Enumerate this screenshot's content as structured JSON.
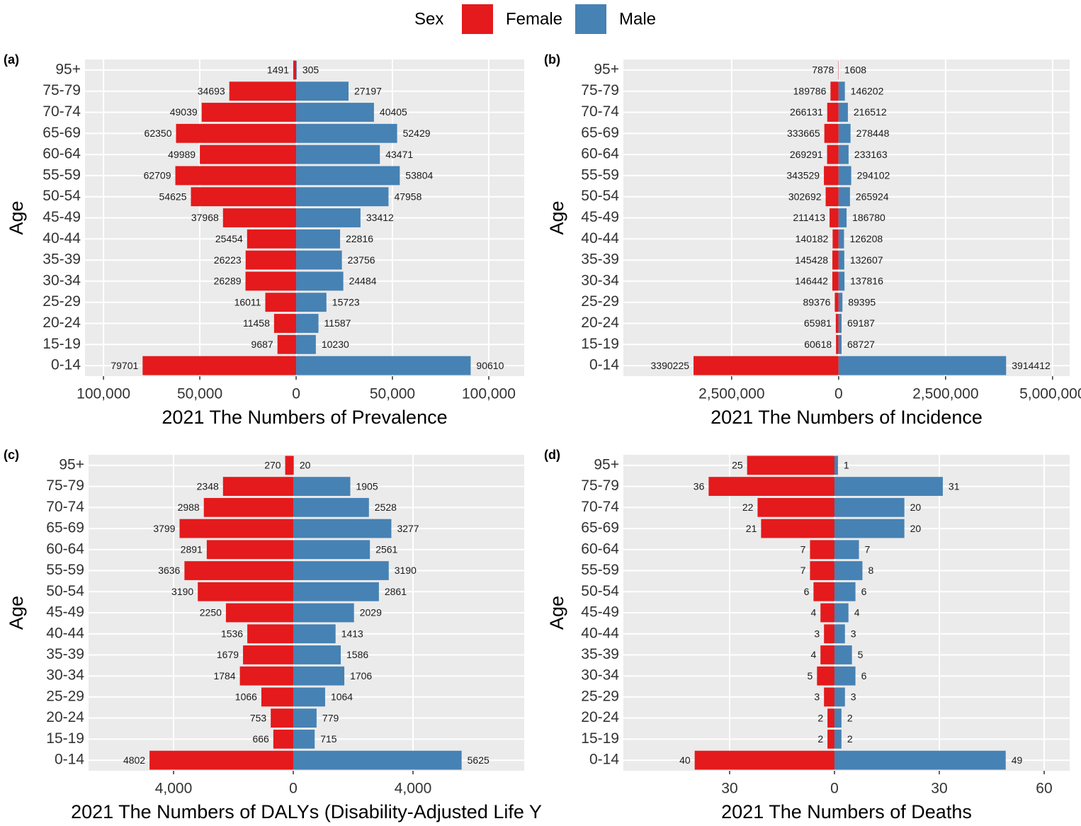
{
  "legend": {
    "title": "Sex"
  },
  "chart_data": [
    {
      "type": "pyramid",
      "tag": "(a)",
      "xlabel": "2021 The Numbers of Prevalence",
      "ylabel": "Age",
      "categories": [
        "95+",
        "75-79",
        "70-74",
        "65-69",
        "60-64",
        "55-59",
        "50-54",
        "45-49",
        "40-44",
        "35-39",
        "30-34",
        "25-29",
        "20-24",
        "15-19",
        "0-14"
      ],
      "series": [
        {
          "name": "Female",
          "color": "#e41a1c",
          "values": [
            -1491,
            -34693,
            -49039,
            -62350,
            -49989,
            -62709,
            -54625,
            -37968,
            -25454,
            -26223,
            -26289,
            -16011,
            -11458,
            -9687,
            -79701
          ],
          "value_labels": [
            "1491",
            "34693",
            "49039",
            "62350",
            "49989",
            "62709",
            "54625",
            "37968",
            "25454",
            "26223",
            "26289",
            "16011",
            "11458",
            "9687",
            "79701"
          ]
        },
        {
          "name": "Male",
          "color": "#4682b4",
          "values": [
            305,
            27197,
            40405,
            52429,
            43471,
            53804,
            47958,
            33412,
            22816,
            23756,
            24484,
            15723,
            11587,
            10230,
            90610
          ]
        }
      ],
      "xlim": [
        -109600,
        118400
      ],
      "xticks": [
        {
          "value": -100000,
          "label": "100,000"
        },
        {
          "value": -50000,
          "label": "50,000"
        },
        0,
        {
          "value": 50000,
          "label": "50,000"
        },
        {
          "value": 100000,
          "label": "100,000"
        }
      ],
      "grid": true
    },
    {
      "type": "pyramid",
      "tag": "(b)",
      "xlabel": "2021 The Numbers of Incidence",
      "ylabel": "Age",
      "categories": [
        "95+",
        "75-79",
        "70-74",
        "65-69",
        "60-64",
        "55-59",
        "50-54",
        "45-49",
        "40-44",
        "35-39",
        "30-34",
        "25-29",
        "20-24",
        "15-19",
        "0-14"
      ],
      "series": [
        {
          "name": "Female",
          "color": "#e41a1c",
          "values": [
            -7878,
            -189786,
            -266131,
            -333665,
            -269291,
            -343529,
            -302692,
            -211413,
            -140182,
            -145428,
            -146442,
            -89376,
            -65981,
            -60618,
            -3390225
          ],
          "value_labels": [
            "7878",
            "189786",
            "266131",
            "333665",
            "269291",
            "343529",
            "302692",
            "211413",
            "140182",
            "145428",
            "146442",
            "89376",
            "65981",
            "60618",
            "3390225"
          ]
        },
        {
          "name": "Male",
          "color": "#4682b4",
          "values": [
            1608,
            146202,
            216512,
            278448,
            233163,
            294102,
            265924,
            186780,
            126208,
            132607,
            137816,
            89395,
            69187,
            68727,
            3914412
          ]
        }
      ],
      "xlim": [
        -5030000,
        5400000
      ],
      "xticks": [
        {
          "value": -2500000,
          "label": "2,500,000"
        },
        0,
        {
          "value": 2500000,
          "label": "2,500,000"
        },
        {
          "value": 5000000,
          "label": "5,000,000"
        }
      ],
      "grid": true
    },
    {
      "type": "pyramid",
      "tag": "(c)",
      "xlabel": "2021 The Numbers of DALYs (Disability-Adjusted Life Y",
      "ylabel": "Age",
      "categories": [
        "95+",
        "75-79",
        "70-74",
        "65-69",
        "60-64",
        "55-59",
        "50-54",
        "45-49",
        "40-44",
        "35-39",
        "30-34",
        "25-29",
        "20-24",
        "15-19",
        "0-14"
      ],
      "series": [
        {
          "name": "Female",
          "color": "#e41a1c",
          "values": [
            -270,
            -2348,
            -2988,
            -3799,
            -2891,
            -3636,
            -3190,
            -2250,
            -1536,
            -1679,
            -1784,
            -1066,
            -753,
            -666,
            -4802
          ],
          "value_labels": [
            "270",
            "2348",
            "2988",
            "3799",
            "2891",
            "3636",
            "3190",
            "2250",
            "1536",
            "1679",
            "1784",
            "1066",
            "753",
            "666",
            "4802"
          ]
        },
        {
          "name": "Male",
          "color": "#4682b4",
          "values": [
            20,
            1905,
            2528,
            3277,
            2561,
            3190,
            2861,
            2029,
            1413,
            1586,
            1706,
            1064,
            779,
            715,
            5625
          ]
        }
      ],
      "xlim": [
        -6840,
        7716
      ],
      "xticks": [
        {
          "value": -4000,
          "label": "4,000"
        },
        0,
        {
          "value": 4000,
          "label": "4,000"
        }
      ],
      "grid": true
    },
    {
      "type": "pyramid",
      "tag": "(d)",
      "xlabel": "2021 The Numbers of Deaths",
      "ylabel": "Age",
      "categories": [
        "95+",
        "75-79",
        "70-74",
        "65-69",
        "60-64",
        "55-59",
        "50-54",
        "45-49",
        "40-44",
        "35-39",
        "30-34",
        "25-29",
        "20-24",
        "15-19",
        "0-14"
      ],
      "series": [
        {
          "name": "Female",
          "color": "#e41a1c",
          "values": [
            -25,
            -36,
            -22,
            -21,
            -7,
            -7,
            -6,
            -4,
            -3,
            -4,
            -5,
            -3,
            -2,
            -2,
            -40
          ],
          "value_labels": [
            "25",
            "36",
            "22",
            "21",
            "7",
            "7",
            "6",
            "4",
            "3",
            "4",
            "5",
            "3",
            "2",
            "2",
            "40"
          ]
        },
        {
          "name": "Male",
          "color": "#4682b4",
          "values": [
            1,
            31,
            20,
            20,
            7,
            8,
            6,
            4,
            3,
            5,
            6,
            3,
            2,
            2,
            49
          ]
        }
      ],
      "xlim": [
        -60.4,
        67.3
      ],
      "xticks": [
        {
          "value": -30,
          "label": "30"
        },
        0,
        30,
        60
      ],
      "grid": true
    }
  ]
}
